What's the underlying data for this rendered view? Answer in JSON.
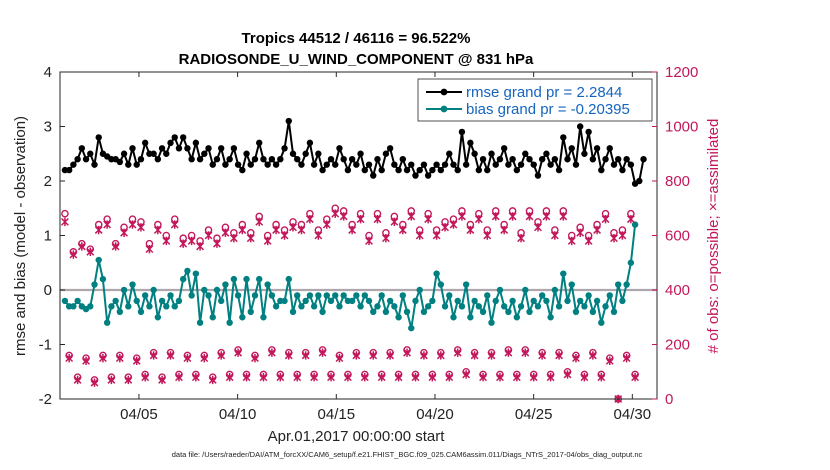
{
  "chart_data": {
    "type": "line",
    "title": "Tropics 44512 / 46116 = 96.522%",
    "subtitle": "RADIOSONDE_U_WIND_COMPONENT @ 831 hPa",
    "xlabel": "Apr.01,2017 00:00:00 start",
    "ylabel": "rmse and bias (model - observation)",
    "ylabel_right": "# of obs: o=possible; ×=assimilated",
    "ylim": [
      -2,
      4
    ],
    "ylim_right": [
      0,
      1200
    ],
    "xlim": [
      1.0,
      31.25
    ],
    "yticks": [
      "-2",
      "-1",
      "0",
      "1",
      "2",
      "3",
      "4"
    ],
    "yticks_right": [
      "0",
      "200",
      "400",
      "600",
      "800",
      "1000",
      "1200"
    ],
    "xtick_positions": [
      5,
      10,
      15,
      20,
      25,
      30
    ],
    "xticks": [
      "04/05",
      "04/10",
      "04/15",
      "04/20",
      "04/25",
      "04/30"
    ],
    "legend": [
      "rmse grand pr = 2.2844",
      "bias grand pr = -0.20395"
    ],
    "footer": "data file: /Users/raeder/DAI/ATM_forcXX/CAM6_setup/f.e21.FHIST_BGC.f09_025.CAM6assim.011/Diags_NTrS_2017-04/obs_diag_output.nc",
    "series": [
      {
        "name": "rmse",
        "color": "#000000",
        "values": [
          2.2,
          2.2,
          2.3,
          2.4,
          2.6,
          2.4,
          2.5,
          2.3,
          2.8,
          2.5,
          2.45,
          2.4,
          2.4,
          2.35,
          2.5,
          2.3,
          2.6,
          2.3,
          2.4,
          2.7,
          2.5,
          2.5,
          2.4,
          2.6,
          2.5,
          2.7,
          2.8,
          2.6,
          2.8,
          2.6,
          2.4,
          2.7,
          2.4,
          2.5,
          2.6,
          2.3,
          2.4,
          2.6,
          2.3,
          2.4,
          2.6,
          2.3,
          2.2,
          2.5,
          2.3,
          2.4,
          2.7,
          2.4,
          2.3,
          2.4,
          2.3,
          2.4,
          2.6,
          3.1,
          2.5,
          2.4,
          2.3,
          2.5,
          2.7,
          2.3,
          2.5,
          2.2,
          2.3,
          2.4,
          2.3,
          2.6,
          2.4,
          2.2,
          2.4,
          2.3,
          2.5,
          2.2,
          2.3,
          2.1,
          2.4,
          2.2,
          2.5,
          2.6,
          2.3,
          2.2,
          2.4,
          2.2,
          2.3,
          2.1,
          2.2,
          2.3,
          2.1,
          2.2,
          2.3,
          2.2,
          2.3,
          2.5,
          2.3,
          2.2,
          2.9,
          2.3,
          2.7,
          2.5,
          2.2,
          2.4,
          2.2,
          2.5,
          2.3,
          2.4,
          2.6,
          2.3,
          2.4,
          2.2,
          2.3,
          2.5,
          2.4,
          2.3,
          2.1,
          2.4,
          2.5,
          2.3,
          2.4,
          2.2,
          2.8,
          2.4,
          2.6,
          2.3,
          3.0,
          2.5,
          2.9,
          2.4,
          2.6,
          2.2,
          2.4,
          2.6,
          2.3,
          2.4,
          2.2,
          2.4,
          2.3,
          1.95,
          2.0,
          2.4
        ]
      },
      {
        "name": "bias",
        "color": "#008080",
        "values": [
          -0.2,
          -0.3,
          -0.3,
          -0.2,
          -0.3,
          -0.35,
          -0.3,
          0.1,
          0.55,
          0.2,
          -0.6,
          -0.3,
          -0.2,
          -0.4,
          0.0,
          -0.3,
          0.1,
          -0.2,
          -0.4,
          -0.1,
          -0.3,
          0.0,
          -0.5,
          -0.2,
          -0.3,
          -0.1,
          -0.3,
          -0.2,
          0.2,
          0.35,
          -0.1,
          0.3,
          -0.6,
          0.0,
          -0.1,
          -0.5,
          0.0,
          -0.2,
          0.1,
          -0.6,
          0.2,
          -0.1,
          -0.5,
          0.2,
          -0.4,
          -0.1,
          0.2,
          -0.5,
          0.1,
          -0.1,
          -0.3,
          -0.2,
          -0.2,
          0.2,
          -0.4,
          -0.1,
          -0.3,
          -0.2,
          -0.1,
          -0.3,
          -0.1,
          -0.4,
          -0.1,
          -0.2,
          -0.1,
          -0.3,
          -0.1,
          -0.2,
          -0.2,
          -0.1,
          -0.3,
          -0.1,
          -0.2,
          -0.4,
          -0.3,
          -0.1,
          -0.4,
          -0.2,
          -0.3,
          -0.5,
          -0.1,
          -0.4,
          -0.7,
          -0.2,
          0.0,
          -0.4,
          -0.3,
          -0.2,
          0.3,
          0.1,
          -0.3,
          -0.1,
          -0.5,
          -0.2,
          -0.3,
          0.1,
          -0.5,
          -0.2,
          -0.3,
          -0.4,
          -0.1,
          -0.6,
          -0.2,
          0.0,
          -0.3,
          -0.4,
          -0.2,
          -0.5,
          -0.3,
          0.0,
          -0.4,
          -0.2,
          -0.3,
          -0.1,
          -0.2,
          -0.5,
          0.0,
          -0.3,
          0.3,
          -0.2,
          0.1,
          -0.4,
          -0.2,
          -0.3,
          -0.1,
          -0.4,
          -0.2,
          -0.6,
          -0.3,
          -0.1,
          -0.4,
          0.1,
          -0.2,
          0.1,
          0.5,
          1.2
        ]
      },
      {
        "name": "possible",
        "color": "#c2185b",
        "axis": "right",
        "values": [
          680,
          160,
          540,
          80,
          570,
          150,
          550,
          70,
          640,
          160,
          660,
          80,
          570,
          160,
          630,
          80,
          660,
          150,
          650,
          90,
          570,
          170,
          640,
          80,
          600,
          170,
          660,
          90,
          590,
          160,
          600,
          90,
          580,
          160,
          620,
          80,
          590,
          170,
          630,
          90,
          610,
          180,
          640,
          90,
          610,
          160,
          670,
          90,
          600,
          180,
          640,
          90,
          620,
          170,
          650,
          90,
          640,
          170,
          680,
          90,
          620,
          180,
          660,
          90,
          700,
          160,
          690,
          90,
          640,
          170,
          680,
          90,
          600,
          170,
          680,
          90,
          610,
          170,
          670,
          90,
          640,
          180,
          690,
          90,
          620,
          170,
          680,
          90,
          620,
          170,
          650,
          90,
          660,
          180,
          690,
          100,
          640,
          170,
          680,
          90,
          620,
          170,
          690,
          90,
          640,
          180,
          690,
          90,
          610,
          180,
          690,
          90,
          650,
          170,
          690,
          90,
          620,
          170,
          690,
          100,
          600,
          160,
          630,
          90,
          600,
          170,
          640,
          90,
          680,
          150,
          610,
          0,
          620,
          160,
          680,
          90
        ]
      },
      {
        "name": "assimilated",
        "color": "#c2185b",
        "axis": "right",
        "values": [
          650,
          150,
          530,
          70,
          560,
          140,
          540,
          60,
          620,
          150,
          640,
          70,
          560,
          150,
          610,
          70,
          640,
          140,
          630,
          80,
          550,
          160,
          620,
          70,
          580,
          160,
          640,
          80,
          570,
          150,
          580,
          80,
          560,
          150,
          600,
          70,
          570,
          160,
          610,
          80,
          590,
          170,
          620,
          80,
          590,
          150,
          650,
          80,
          580,
          170,
          620,
          80,
          600,
          160,
          630,
          80,
          620,
          160,
          660,
          80,
          600,
          170,
          640,
          80,
          680,
          150,
          670,
          80,
          620,
          160,
          660,
          80,
          580,
          160,
          660,
          80,
          590,
          160,
          650,
          80,
          620,
          170,
          670,
          80,
          600,
          160,
          660,
          80,
          600,
          160,
          630,
          80,
          640,
          170,
          670,
          90,
          620,
          160,
          660,
          80,
          600,
          160,
          670,
          80,
          620,
          170,
          670,
          80,
          590,
          170,
          670,
          80,
          630,
          160,
          670,
          80,
          600,
          160,
          670,
          90,
          580,
          150,
          610,
          80,
          580,
          160,
          620,
          80,
          660,
          140,
          590,
          0,
          600,
          150,
          660,
          80
        ]
      }
    ]
  }
}
